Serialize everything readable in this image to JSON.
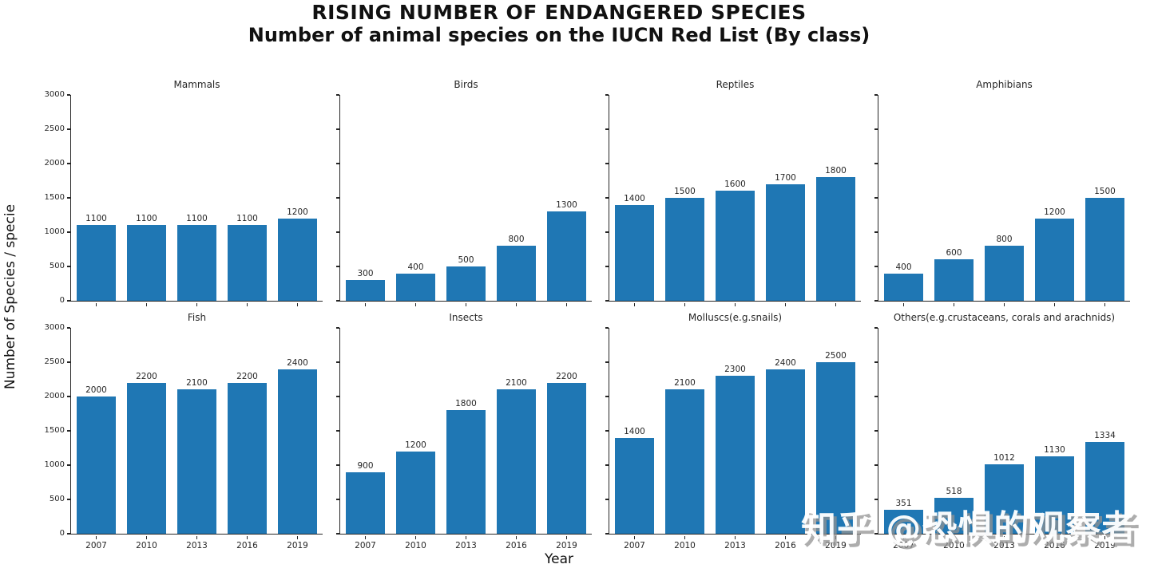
{
  "header": {
    "title": "RISING NUMBER OF ENDANGERED SPECIES",
    "subtitle": "Number of animal species on the IUCN Red List (By class)"
  },
  "watermark": {
    "text": "知乎 @恐惧的观察者"
  },
  "colors": {
    "bar": "#1f77b4",
    "axis": "#262626",
    "title_text": "#111111",
    "watermark_shadow": "#919191"
  },
  "chart_data": {
    "type": "bar",
    "layout": {
      "rows": 2,
      "cols": 4,
      "grid": false,
      "shared_x": true,
      "shared_y": true,
      "legend": "none"
    },
    "title": "RISING NUMBER OF ENDANGERED SPECIES",
    "subtitle": "Number of animal species on the IUCN Red List (By class)",
    "xlabel": "Year",
    "ylabel": "Number of Species / specie",
    "categories": [
      "2007",
      "2010",
      "2013",
      "2016",
      "2019"
    ],
    "ylim": [
      0,
      3000
    ],
    "yticks": [
      0,
      500,
      1000,
      1500,
      2000,
      2500,
      3000
    ],
    "bar_color": "#1f77b4",
    "series": [
      {
        "name": "Mammals",
        "values": [
          1100,
          1100,
          1100,
          1100,
          1200
        ]
      },
      {
        "name": "Birds",
        "values": [
          300,
          400,
          500,
          800,
          1300
        ]
      },
      {
        "name": "Reptiles",
        "values": [
          1400,
          1500,
          1600,
          1700,
          1800
        ]
      },
      {
        "name": "Amphibians",
        "values": [
          400,
          600,
          800,
          1200,
          1500
        ]
      },
      {
        "name": "Fish",
        "values": [
          2000,
          2200,
          2100,
          2200,
          2400
        ]
      },
      {
        "name": "Insects",
        "values": [
          900,
          1200,
          1800,
          2100,
          2200
        ]
      },
      {
        "name": "Molluscs(e.g.snails)",
        "values": [
          1400,
          2100,
          2300,
          2400,
          2500
        ]
      },
      {
        "name": "Others(e.g.crustaceans, corals and arachnids)",
        "values": [
          351,
          518,
          1012,
          1130,
          1334
        ]
      }
    ]
  }
}
